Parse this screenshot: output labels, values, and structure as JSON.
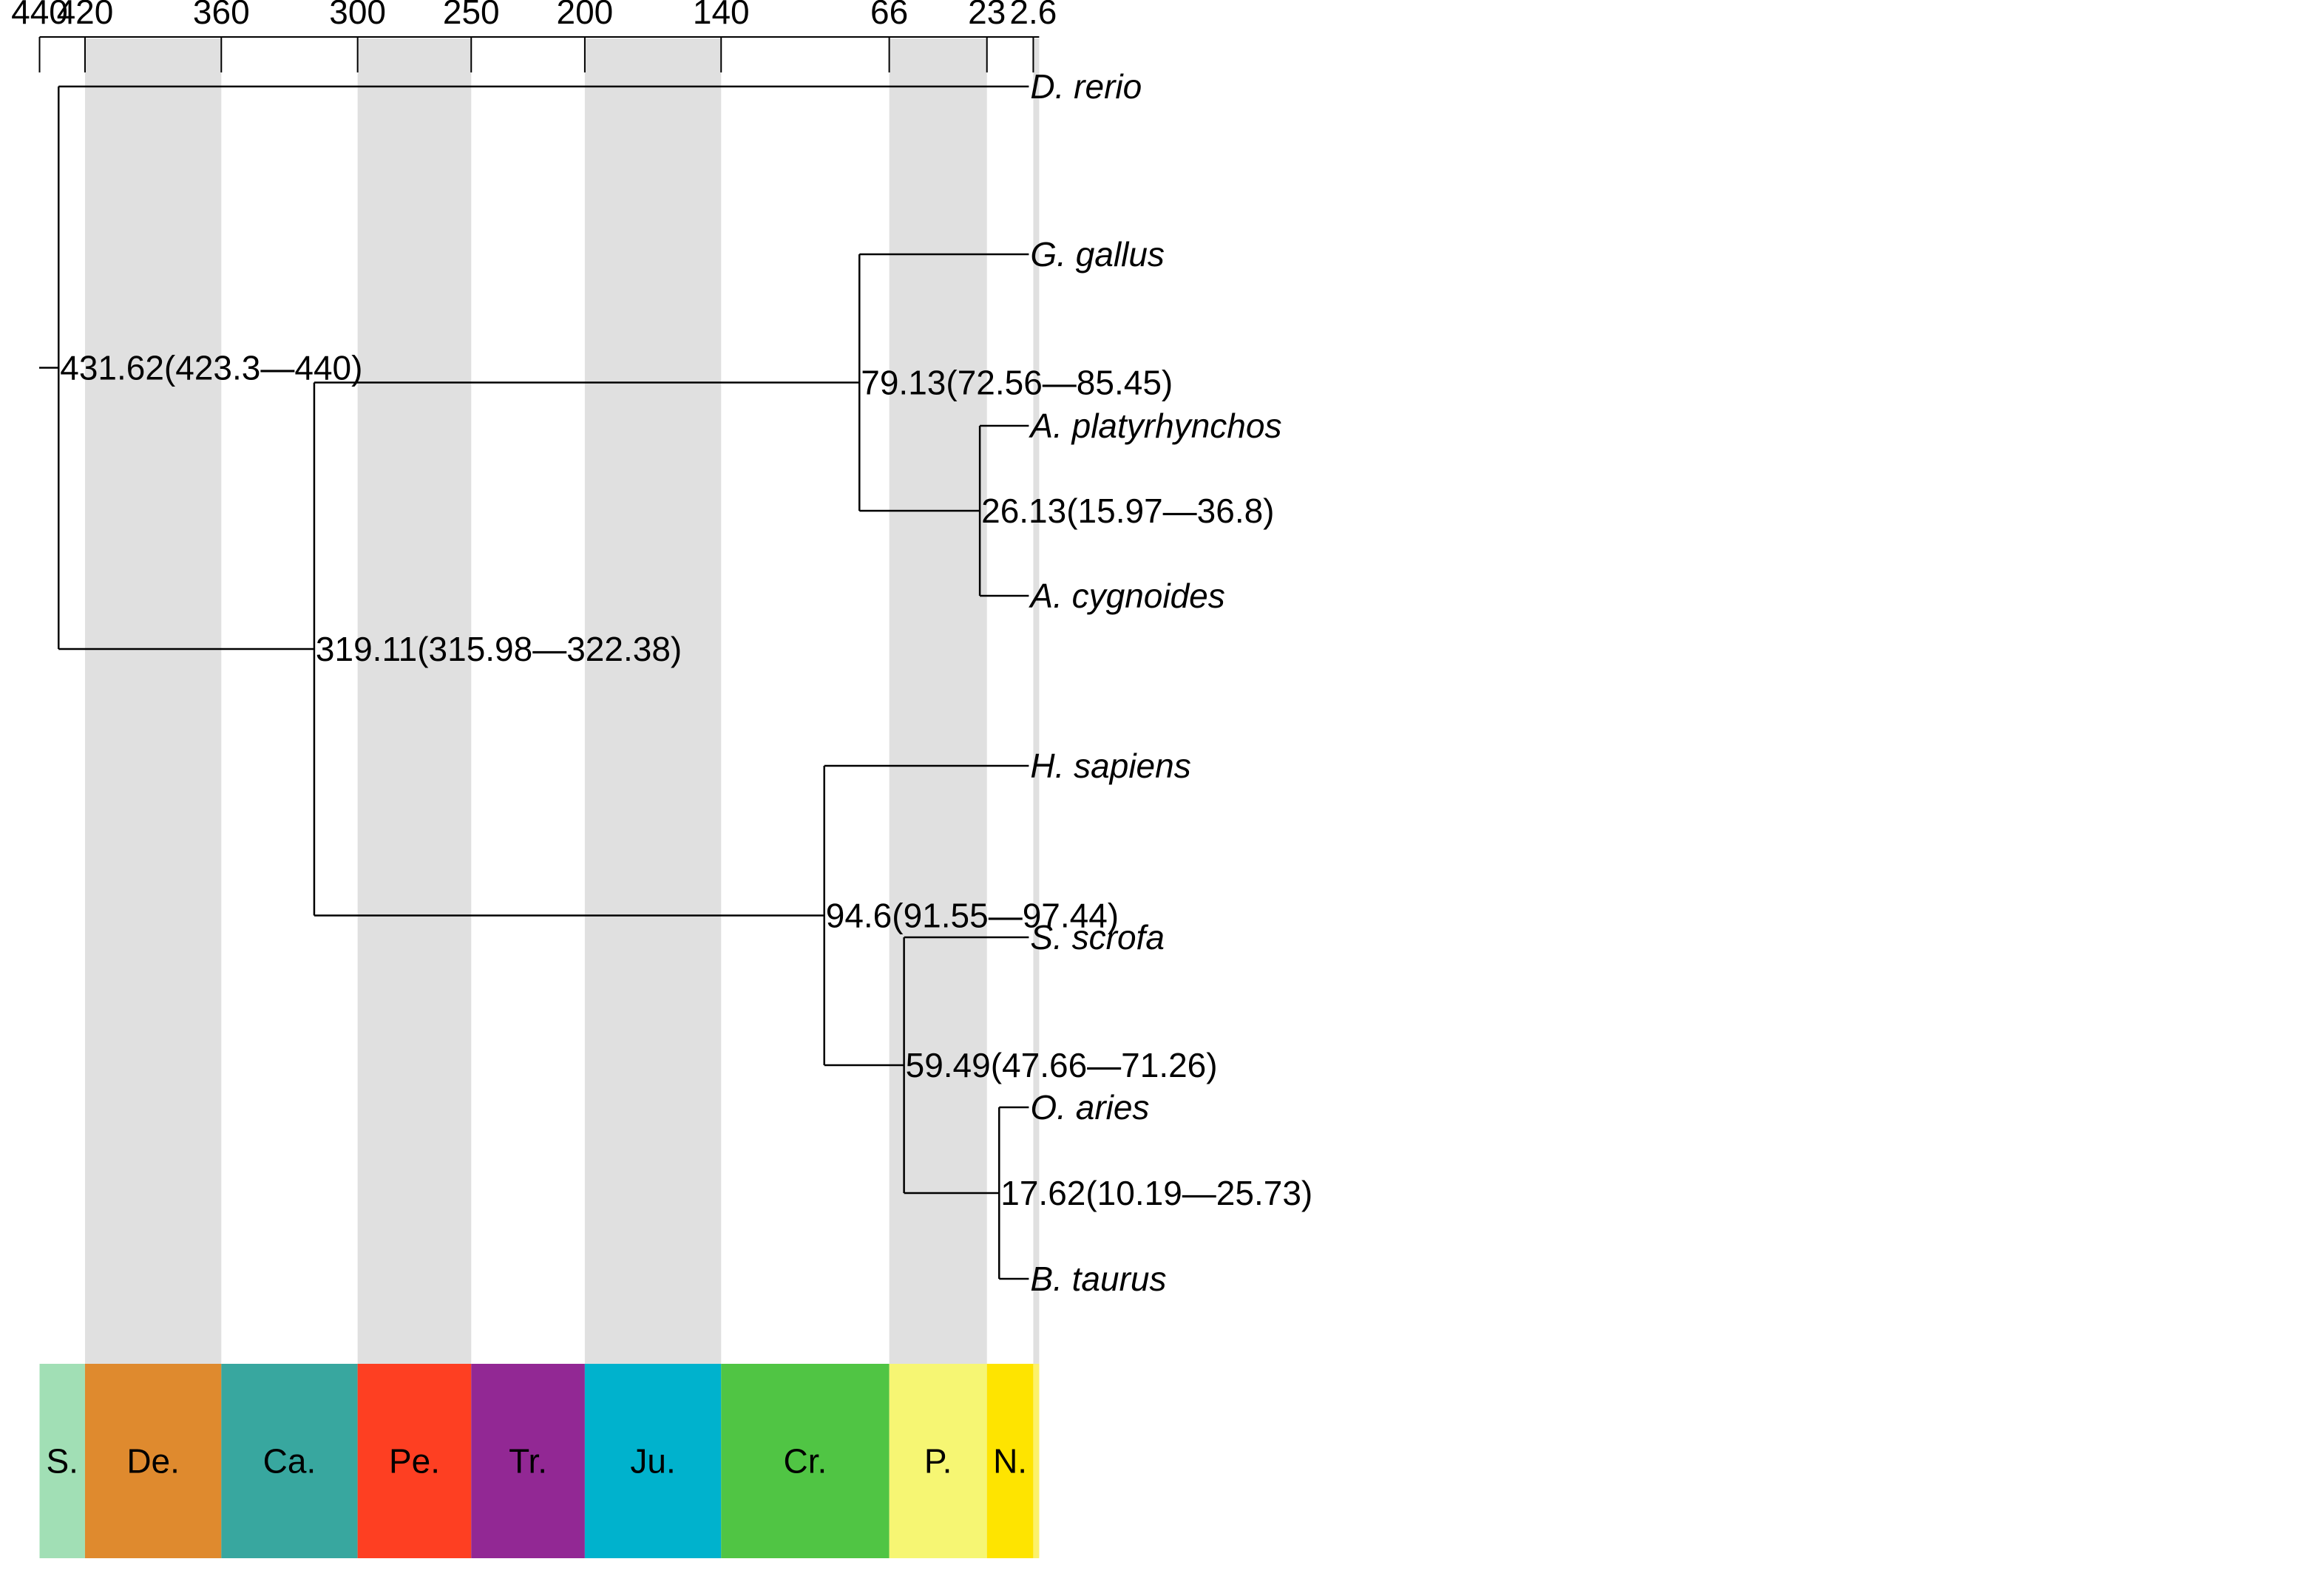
{
  "chart_data": {
    "type": "time-calibrated-phylogeny",
    "axis_ticks": [
      "440",
      "420",
      "360",
      "300",
      "250",
      "200",
      "140",
      "66",
      "23",
      "2.6"
    ],
    "axis_tick_values": [
      440,
      420,
      360,
      300,
      250,
      200,
      140,
      66,
      23,
      2.6
    ],
    "x_range": [
      440,
      0
    ],
    "shaded_bands": [
      [
        420,
        360
      ],
      [
        300,
        250
      ],
      [
        200,
        140
      ],
      [
        66,
        23
      ],
      [
        2.6,
        0
      ]
    ],
    "periods": [
      {
        "label": "S.",
        "start": 440,
        "end": 420,
        "color": "#a1dfb5"
      },
      {
        "label": "De.",
        "start": 420,
        "end": 360,
        "color": "#df8a2e"
      },
      {
        "label": "Ca.",
        "start": 360,
        "end": 300,
        "color": "#38a79f"
      },
      {
        "label": "Pe.",
        "start": 300,
        "end": 250,
        "color": "#fe3f22"
      },
      {
        "label": "Tr.",
        "start": 250,
        "end": 200,
        "color": "#922894"
      },
      {
        "label": "Ju.",
        "start": 200,
        "end": 140,
        "color": "#00b2cd"
      },
      {
        "label": "Cr.",
        "start": 140,
        "end": 66,
        "color": "#50c544"
      },
      {
        "label": "P.",
        "start": 66,
        "end": 23,
        "color": "#f6f673"
      },
      {
        "label": "N.",
        "start": 23,
        "end": 2.6,
        "color": "#fee400"
      },
      {
        "label": "",
        "start": 2.6,
        "end": 0,
        "color": "#fcf16a"
      }
    ],
    "taxa": [
      "D. rerio",
      "G. gallus",
      "A. platyrhynchos",
      "A. cygnoides",
      "H. sapiens",
      "S. scrofa",
      "O. aries",
      "B. taurus"
    ],
    "nodes": [
      {
        "id": "n1",
        "age": 431.62,
        "label": "431.62(423.3—440)",
        "children": [
          "D. rerio",
          "n2"
        ]
      },
      {
        "id": "n2",
        "age": 319.11,
        "label": "319.11(315.98—322.38)",
        "children": [
          "n3",
          "n5"
        ]
      },
      {
        "id": "n3",
        "age": 79.13,
        "label": "79.13(72.56—85.45)",
        "children": [
          "G. gallus",
          "n4"
        ]
      },
      {
        "id": "n4",
        "age": 26.13,
        "label": "26.13(15.97—36.8)",
        "children": [
          "A. platyrhynchos",
          "A. cygnoides"
        ]
      },
      {
        "id": "n5",
        "age": 94.6,
        "label": "94.6(91.55—97.44)",
        "children": [
          "H. sapiens",
          "n6"
        ]
      },
      {
        "id": "n6",
        "age": 59.49,
        "label": "59.49(47.66—71.26)",
        "children": [
          "S. scrofa",
          "n7"
        ]
      },
      {
        "id": "n7",
        "age": 17.62,
        "label": "17.62(10.19—25.73)",
        "children": [
          "O. aries",
          "B. taurus"
        ]
      }
    ]
  }
}
